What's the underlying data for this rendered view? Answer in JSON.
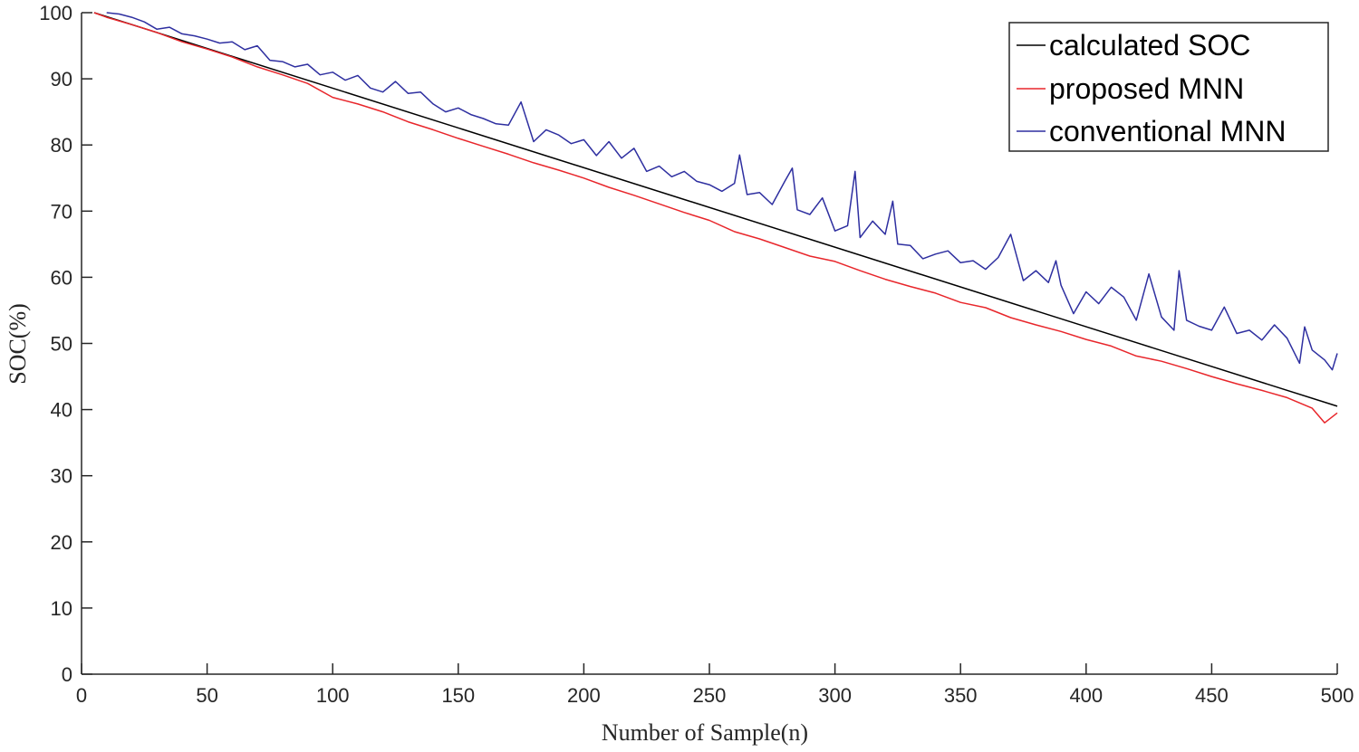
{
  "chart_data": {
    "type": "line",
    "title": "",
    "xlabel": "Number of Sample(n)",
    "ylabel": "SOC(%)",
    "xlim": [
      0,
      500
    ],
    "ylim": [
      0,
      100
    ],
    "xticks": [
      0,
      50,
      100,
      150,
      200,
      250,
      300,
      350,
      400,
      450,
      500
    ],
    "yticks": [
      0,
      10,
      20,
      30,
      40,
      50,
      60,
      70,
      80,
      90,
      100
    ],
    "grid": false,
    "legend_position": "top-right",
    "series": [
      {
        "name": "calculated SOC",
        "color": "#000000",
        "x": [
          5,
          500
        ],
        "y": [
          100,
          40.5
        ]
      },
      {
        "name": "proposed MNN",
        "color": "#e8262b",
        "x": [
          5,
          10,
          20,
          30,
          40,
          50,
          60,
          70,
          80,
          90,
          100,
          110,
          120,
          130,
          140,
          150,
          160,
          170,
          180,
          190,
          200,
          210,
          220,
          230,
          240,
          250,
          260,
          270,
          280,
          290,
          300,
          310,
          320,
          330,
          340,
          350,
          360,
          370,
          380,
          390,
          400,
          410,
          420,
          430,
          440,
          450,
          460,
          470,
          480,
          490,
          495,
          500
        ],
        "y": [
          100,
          99.3,
          98.2,
          97.0,
          95.6,
          94.5,
          93.3,
          91.8,
          90.6,
          89.3,
          87.2,
          86.2,
          85.0,
          83.5,
          82.3,
          81.0,
          79.8,
          78.6,
          77.3,
          76.2,
          75.0,
          73.6,
          72.4,
          71.1,
          69.8,
          68.6,
          66.9,
          65.8,
          64.5,
          63.2,
          62.4,
          61.0,
          59.7,
          58.6,
          57.6,
          56.2,
          55.4,
          53.9,
          52.8,
          51.8,
          50.6,
          49.6,
          48.1,
          47.3,
          46.2,
          45.0,
          43.9,
          42.9,
          41.8,
          40.2,
          38.0,
          39.5
        ]
      },
      {
        "name": "conventional MNN",
        "color": "#2e2fa0",
        "x": [
          10,
          15,
          20,
          25,
          30,
          35,
          40,
          45,
          50,
          55,
          60,
          65,
          70,
          75,
          80,
          85,
          90,
          95,
          100,
          105,
          110,
          115,
          120,
          125,
          130,
          135,
          140,
          145,
          150,
          155,
          160,
          165,
          170,
          175,
          180,
          185,
          190,
          195,
          200,
          205,
          210,
          215,
          220,
          225,
          230,
          235,
          240,
          245,
          250,
          255,
          260,
          262,
          265,
          270,
          275,
          280,
          283,
          285,
          290,
          295,
          300,
          305,
          308,
          310,
          315,
          320,
          323,
          325,
          330,
          335,
          340,
          345,
          350,
          355,
          360,
          365,
          370,
          375,
          380,
          385,
          388,
          390,
          395,
          400,
          405,
          410,
          415,
          420,
          425,
          430,
          435,
          437,
          440,
          445,
          450,
          455,
          460,
          465,
          470,
          475,
          480,
          485,
          487,
          490,
          495,
          498,
          500
        ],
        "y": [
          100,
          99.8,
          99.3,
          98.6,
          97.5,
          97.8,
          96.8,
          96.5,
          96.0,
          95.4,
          95.6,
          94.4,
          95.0,
          92.8,
          92.6,
          91.8,
          92.2,
          90.6,
          91.0,
          89.8,
          90.5,
          88.6,
          88.0,
          89.6,
          87.8,
          88.0,
          86.2,
          85.0,
          85.6,
          84.6,
          84.0,
          83.2,
          83.0,
          86.5,
          80.5,
          82.3,
          81.5,
          80.2,
          80.8,
          78.4,
          80.5,
          78.0,
          79.5,
          76.0,
          76.8,
          75.2,
          76.0,
          74.5,
          74.0,
          73.0,
          74.2,
          78.5,
          72.5,
          72.8,
          71.0,
          74.5,
          76.5,
          70.2,
          69.5,
          72.0,
          67.0,
          67.8,
          76.0,
          66.0,
          68.5,
          66.5,
          71.5,
          65.0,
          64.8,
          62.8,
          63.5,
          64.0,
          62.2,
          62.5,
          61.2,
          63.0,
          66.5,
          59.5,
          61.0,
          59.2,
          62.5,
          58.8,
          54.5,
          57.8,
          56.0,
          58.5,
          57.0,
          53.5,
          60.5,
          54.0,
          52.0,
          61.0,
          53.5,
          52.6,
          52.0,
          55.5,
          51.5,
          52.0,
          50.5,
          52.8,
          50.8,
          47.0,
          52.5,
          49.0,
          47.5,
          46.0,
          48.5
        ]
      }
    ]
  }
}
